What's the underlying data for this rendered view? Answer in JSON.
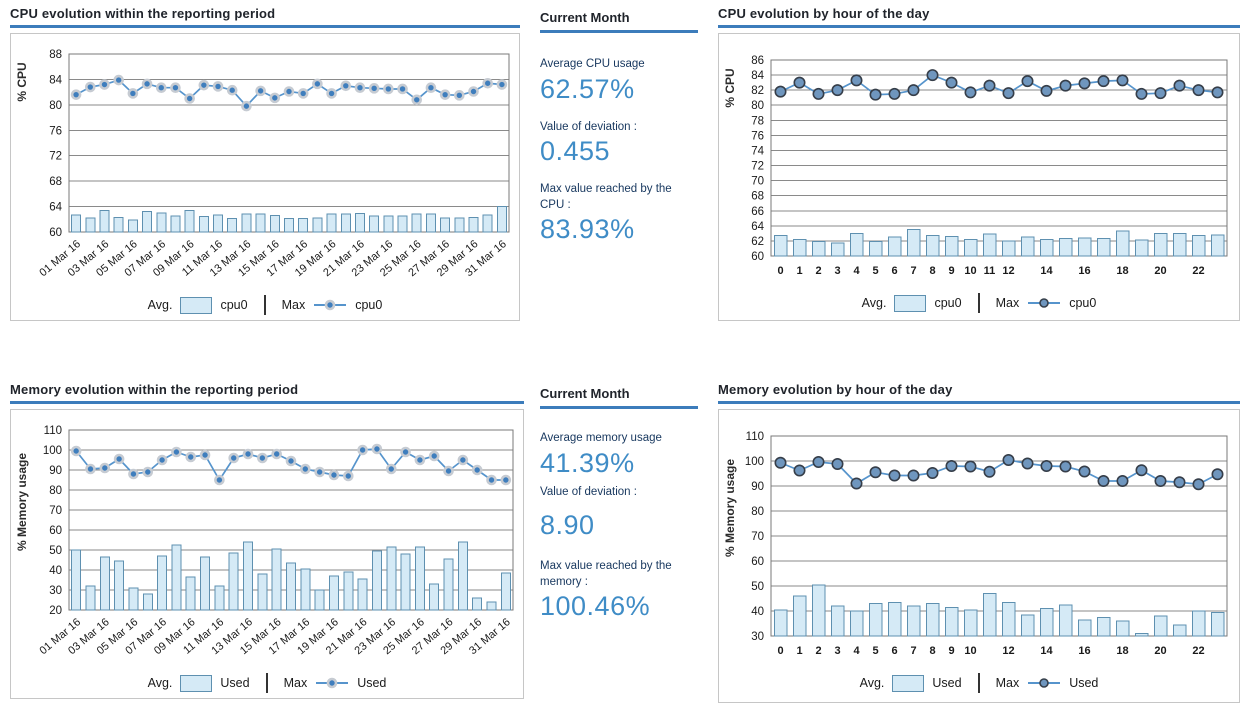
{
  "colors": {
    "accent_blue": "#3C7CBB",
    "bar_fill": "#D5EAF6",
    "bar_stroke": "#5E90B0",
    "line": "#5694CC",
    "marker_halo_fill": "#3F7EBD",
    "marker_halo_ring": "#C6CBD2",
    "marker_outline_fill": "#6F96BE",
    "marker_outline_stroke": "#363E49",
    "grid": "#8A8A8A",
    "plot_border": "#787878",
    "stat_value": "#3F8CC6"
  },
  "stats": [
    {
      "title": "Current Month",
      "items": [
        {
          "label": "Average CPU usage",
          "value": "62.57%"
        },
        {
          "label": "Value of deviation :",
          "value": "0.455"
        },
        {
          "label": "Max value reached by the CPU :",
          "value": "83.93%"
        }
      ]
    },
    {
      "title": "Current Month",
      "items": [
        {
          "label": "Average memory usage",
          "value": "41.39%"
        },
        {
          "label": "Value of deviation :",
          "value": "8.90"
        },
        {
          "label": "Max value reached by the memory :",
          "value": "100.46%"
        }
      ]
    }
  ],
  "chart_data": [
    {
      "type": "bar+line",
      "title": "CPU evolution within the reporting period",
      "ylabel": "% CPU",
      "ylim": [
        60,
        88
      ],
      "ytick_step": 4,
      "x_rotate": true,
      "marker_style": "halo",
      "grid": true,
      "legend": {
        "avg_label": "Avg.",
        "max_label": "Max",
        "position": "bottom"
      },
      "categories": [
        "01 Mar 16",
        "02 Mar 16",
        "03 Mar 16",
        "04 Mar 16",
        "05 Mar 16",
        "06 Mar 16",
        "07 Mar 16",
        "08 Mar 16",
        "09 Mar 16",
        "10 Mar 16",
        "11 Mar 16",
        "12 Mar 16",
        "13 Mar 16",
        "14 Mar 16",
        "15 Mar 16",
        "16 Mar 16",
        "17 Mar 16",
        "18 Mar 16",
        "19 Mar 16",
        "20 Mar 16",
        "21 Mar 16",
        "22 Mar 16",
        "23 Mar 16",
        "24 Mar 16",
        "25 Mar 16",
        "26 Mar 16",
        "27 Mar 16",
        "28 Mar 16",
        "29 Mar 16",
        "30 Mar 16",
        "31 Mar 16"
      ],
      "visible_xticks": [
        "01 Mar 16",
        "03 Mar 16",
        "05 Mar 16",
        "07 Mar 16",
        "09 Mar 16",
        "11 Mar 16",
        "13 Mar 16",
        "15 Mar 16",
        "17 Mar 16",
        "19 Mar 16",
        "21 Mar 16",
        "23 Mar 16",
        "25 Mar 16",
        "27 Mar 16",
        "29 Mar 16",
        "31 Mar 16"
      ],
      "series": [
        {
          "name": "cpu0",
          "role": "Avg.",
          "type": "bar",
          "values": [
            62.7,
            62.2,
            63.4,
            62.3,
            61.9,
            63.2,
            63.0,
            62.5,
            63.4,
            62.4,
            62.7,
            62.1,
            62.8,
            62.8,
            62.6,
            62.1,
            62.1,
            62.2,
            62.8,
            62.8,
            62.9,
            62.5,
            62.5,
            62.5,
            62.8,
            62.8,
            62.2,
            62.2,
            62.3,
            62.7,
            64.0
          ]
        },
        {
          "name": "cpu0",
          "role": "Max",
          "type": "line",
          "values": [
            81.6,
            82.8,
            83.2,
            83.9,
            81.8,
            83.3,
            82.7,
            82.7,
            81.0,
            83.1,
            82.9,
            82.3,
            79.8,
            82.2,
            81.1,
            82.1,
            81.8,
            83.3,
            81.8,
            83.0,
            82.7,
            82.6,
            82.5,
            82.5,
            80.8,
            82.7,
            81.6,
            81.5,
            82.1,
            83.4,
            83.2
          ]
        }
      ]
    },
    {
      "type": "bar+line",
      "title": "CPU evolution by hour of the day",
      "ylabel": "% CPU",
      "ylim": [
        60,
        86
      ],
      "ytick_step": 2,
      "x_rotate": false,
      "marker_style": "outline",
      "grid": true,
      "legend": {
        "avg_label": "Avg.",
        "max_label": "Max",
        "position": "bottom"
      },
      "categories": [
        "0",
        "1",
        "2",
        "3",
        "4",
        "5",
        "6",
        "7",
        "8",
        "9",
        "10",
        "11",
        "12",
        "13",
        "14",
        "15",
        "16",
        "17",
        "18",
        "19",
        "20",
        "21",
        "22",
        "23"
      ],
      "visible_xticks": [
        "0",
        "1",
        "2",
        "3",
        "4",
        "5",
        "6",
        "7",
        "8",
        "9",
        "10",
        "11",
        "12",
        "14",
        "16",
        "18",
        "20",
        "22"
      ],
      "series": [
        {
          "name": "cpu0",
          "role": "Avg.",
          "type": "bar",
          "values": [
            62.7,
            62.2,
            61.9,
            61.7,
            63.0,
            61.9,
            62.5,
            63.5,
            62.7,
            62.6,
            62.2,
            62.9,
            62.0,
            62.5,
            62.2,
            62.3,
            62.4,
            62.3,
            63.3,
            62.1,
            63.0,
            63.0,
            62.7,
            62.8
          ]
        },
        {
          "name": "cpu0",
          "role": "Max",
          "type": "line",
          "values": [
            81.8,
            83.0,
            81.5,
            82.0,
            83.3,
            81.4,
            81.5,
            82.0,
            84.0,
            83.0,
            81.7,
            82.6,
            81.6,
            83.2,
            81.9,
            82.6,
            82.9,
            83.2,
            83.3,
            81.5,
            81.6,
            82.6,
            82.0,
            81.7
          ]
        }
      ]
    },
    {
      "type": "bar+line",
      "title": "Memory evolution within the reporting period",
      "ylabel": "% Memory usage",
      "ylim": [
        20,
        110
      ],
      "ytick_step": 10,
      "x_rotate": true,
      "marker_style": "halo",
      "grid": true,
      "legend": {
        "avg_label": "Avg.",
        "max_label": "Max",
        "position": "bottom"
      },
      "categories": [
        "01 Mar 16",
        "02 Mar 16",
        "03 Mar 16",
        "04 Mar 16",
        "05 Mar 16",
        "06 Mar 16",
        "07 Mar 16",
        "08 Mar 16",
        "09 Mar 16",
        "10 Mar 16",
        "11 Mar 16",
        "12 Mar 16",
        "13 Mar 16",
        "14 Mar 16",
        "15 Mar 16",
        "16 Mar 16",
        "17 Mar 16",
        "18 Mar 16",
        "19 Mar 16",
        "20 Mar 16",
        "21 Mar 16",
        "22 Mar 16",
        "23 Mar 16",
        "24 Mar 16",
        "25 Mar 16",
        "26 Mar 16",
        "27 Mar 16",
        "28 Mar 16",
        "29 Mar 16",
        "30 Mar 16",
        "31 Mar 16"
      ],
      "visible_xticks": [
        "01 Mar 16",
        "03 Mar 16",
        "05 Mar 16",
        "07 Mar 16",
        "09 Mar 16",
        "11 Mar 16",
        "13 Mar 16",
        "15 Mar 16",
        "17 Mar 16",
        "19 Mar 16",
        "21 Mar 16",
        "23 Mar 16",
        "25 Mar 16",
        "27 Mar 16",
        "29 Mar 16",
        "31 Mar 16"
      ],
      "series": [
        {
          "name": "Used",
          "role": "Avg.",
          "type": "bar",
          "values": [
            50,
            32,
            46.5,
            44.5,
            31,
            28,
            47,
            52.5,
            36.5,
            46.5,
            32,
            48.5,
            54,
            38,
            50.5,
            43.5,
            40.5,
            30,
            37,
            39,
            35.5,
            49.5,
            51.5,
            48,
            51.5,
            33,
            45.5,
            54,
            26,
            24,
            38.5
          ]
        },
        {
          "name": "Used",
          "role": "Max",
          "type": "line",
          "values": [
            99.5,
            90.5,
            91,
            95.5,
            88,
            89,
            95,
            99,
            96.5,
            97.5,
            85,
            96,
            98,
            96,
            98,
            94.5,
            90.5,
            89,
            87.5,
            87,
            100,
            100.5,
            90.5,
            99,
            95,
            97,
            89.5,
            95,
            90,
            85,
            85
          ]
        }
      ]
    },
    {
      "type": "bar+line",
      "title": "Memory evolution by hour of the day",
      "ylabel": "% Memory usage",
      "ylim": [
        30,
        110
      ],
      "ytick_step": 10,
      "x_rotate": false,
      "marker_style": "outline",
      "grid": true,
      "legend": {
        "avg_label": "Avg.",
        "max_label": "Max",
        "position": "bottom"
      },
      "categories": [
        "0",
        "1",
        "2",
        "3",
        "4",
        "5",
        "6",
        "7",
        "8",
        "9",
        "10",
        "11",
        "12",
        "13",
        "14",
        "15",
        "16",
        "17",
        "18",
        "19",
        "20",
        "21",
        "22",
        "23"
      ],
      "visible_xticks": [
        "0",
        "1",
        "2",
        "3",
        "4",
        "5",
        "6",
        "7",
        "8",
        "9",
        "10",
        "12",
        "14",
        "16",
        "18",
        "20",
        "22"
      ],
      "series": [
        {
          "name": "Used",
          "role": "Avg.",
          "type": "bar",
          "values": [
            40.5,
            46,
            50.5,
            42,
            40,
            43,
            43.5,
            42,
            43,
            41.5,
            40.5,
            47,
            43.5,
            38.5,
            41,
            42.5,
            36.5,
            37.5,
            36,
            31,
            38,
            34.5,
            40,
            39.5
          ]
        },
        {
          "name": "Used",
          "role": "Max",
          "type": "line",
          "values": [
            99.3,
            96.2,
            99.6,
            98.8,
            91,
            95.5,
            94.2,
            94.2,
            95.2,
            98,
            97.8,
            95.7,
            100.4,
            99,
            98,
            97.8,
            95.8,
            92,
            92,
            96.3,
            92,
            91.5,
            90.7,
            94.7
          ]
        }
      ]
    }
  ]
}
